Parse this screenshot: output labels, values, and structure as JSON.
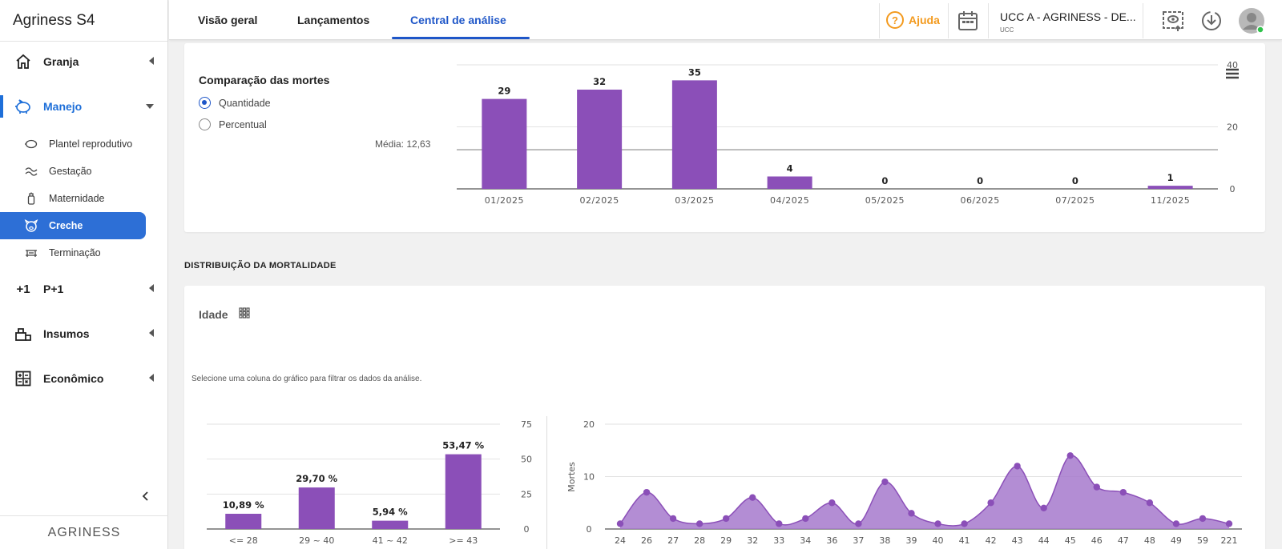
{
  "app": {
    "brand_name": "Agriness",
    "brand_version": "S4",
    "footer_logo": "AGRINESS"
  },
  "sidebar": {
    "groups": [
      {
        "label": "Granja",
        "icon": "home-icon"
      },
      {
        "label": "Manejo",
        "icon": "pig-icon"
      },
      {
        "label": "P+1",
        "icon": "plus-one-icon"
      },
      {
        "label": "Insumos",
        "icon": "supplies-icon"
      },
      {
        "label": "Econômico",
        "icon": "calculator-icon"
      }
    ],
    "subitems": [
      {
        "label": "Plantel reprodutivo",
        "icon": "sow-icon"
      },
      {
        "label": "Gestação",
        "icon": "gestation-icon"
      },
      {
        "label": "Maternidade",
        "icon": "bottle-icon"
      },
      {
        "label": "Creche",
        "icon": "piglet-icon",
        "selected": true
      },
      {
        "label": "Terminação",
        "icon": "finishing-icon"
      }
    ]
  },
  "header": {
    "tabs": [
      "Visão geral",
      "Lançamentos",
      "Central de análise"
    ],
    "active_tab": "Central de análise",
    "help_label": "Ajuda",
    "unit_title": "UCC A - AGRINESS - DE...",
    "unit_subtitle": "UCC"
  },
  "comparison": {
    "title": "Comparação das mortes",
    "options": [
      "Quantidade",
      "Percentual"
    ],
    "selected_option": "Quantidade",
    "average_label": "Média: 12,63"
  },
  "distribution": {
    "section_title": "DISTRIBUIÇÃO DA MORTALIDADE",
    "card_title": "Idade",
    "hint": "Selecione uma coluna do gráfico para filtrar os dados da análise."
  },
  "colors": {
    "bar": "#8b4fb8",
    "area": "#a679cc",
    "accent": "#1e56c8",
    "help": "#f39a1e"
  },
  "chart_data": [
    {
      "type": "bar",
      "title": "Comparação das mortes",
      "categories": [
        "01/2025",
        "02/2025",
        "03/2025",
        "04/2025",
        "05/2025",
        "06/2025",
        "07/2025",
        "11/2025"
      ],
      "values": [
        29,
        32,
        35,
        4,
        0,
        0,
        0,
        1
      ],
      "data_labels": [
        "29",
        "32",
        "35",
        "4",
        "0",
        "0",
        "0",
        "1"
      ],
      "yticks": [
        "0",
        "20",
        "40"
      ],
      "ylim": [
        0,
        40
      ],
      "average": 12.63
    },
    {
      "type": "bar",
      "title": "Idade",
      "categories": [
        "<= 28",
        "29 ~ 40",
        "41 ~ 42",
        ">= 43"
      ],
      "values": [
        10.89,
        29.7,
        5.94,
        53.47
      ],
      "data_labels": [
        "10,89 %",
        "29,70 %",
        "5,94 %",
        "53,47 %"
      ],
      "yticks": [
        "0",
        "25",
        "50",
        "75"
      ],
      "ylim": [
        0,
        75
      ]
    },
    {
      "type": "area",
      "ylabel": "Mortes",
      "categories": [
        "24",
        "26",
        "27",
        "28",
        "29",
        "32",
        "33",
        "34",
        "36",
        "37",
        "38",
        "39",
        "40",
        "41",
        "42",
        "43",
        "44",
        "45",
        "46",
        "47",
        "48",
        "49",
        "59",
        "221"
      ],
      "values": [
        1,
        7,
        2,
        1,
        2,
        6,
        1,
        2,
        5,
        1,
        9,
        3,
        1,
        1,
        5,
        12,
        4,
        14,
        8,
        7,
        5,
        1,
        2,
        1
      ],
      "yticks": [
        "0",
        "10",
        "20"
      ],
      "ylim": [
        0,
        20
      ]
    }
  ]
}
